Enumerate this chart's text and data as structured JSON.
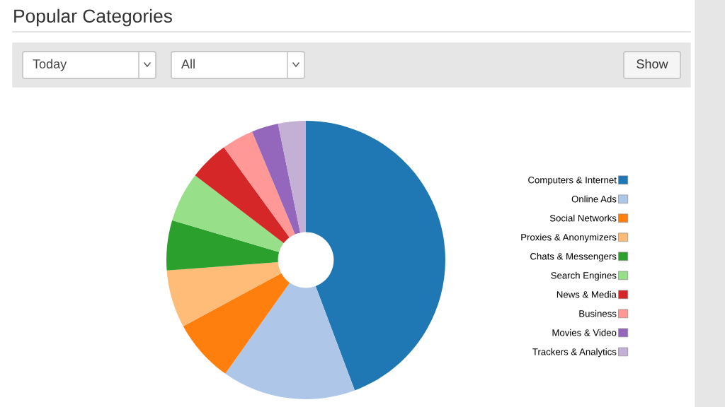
{
  "chart_data": {
    "type": "donut",
    "title": "Popular Categories",
    "categories": [
      "Computers & Internet",
      "Online Ads",
      "Social Networks",
      "Proxies & Anonymizers",
      "Chats & Messengers",
      "Search Engines",
      "News & Media",
      "Business",
      "Movies & Video",
      "Trackers & Analytics"
    ],
    "values": [
      44.3,
      15.5,
      7.3,
      6.7,
      5.8,
      5.8,
      4.6,
      3.7,
      3.1,
      3.2
    ],
    "colors": [
      "#1f77b4",
      "#aec7e8",
      "#ff7f0e",
      "#ffbb78",
      "#2ca02c",
      "#98df8a",
      "#d62728",
      "#ff9896",
      "#9467bd",
      "#c5b0d5"
    ],
    "legend": "right",
    "annotations": [
      "Today",
      "All",
      "Show"
    ]
  }
}
